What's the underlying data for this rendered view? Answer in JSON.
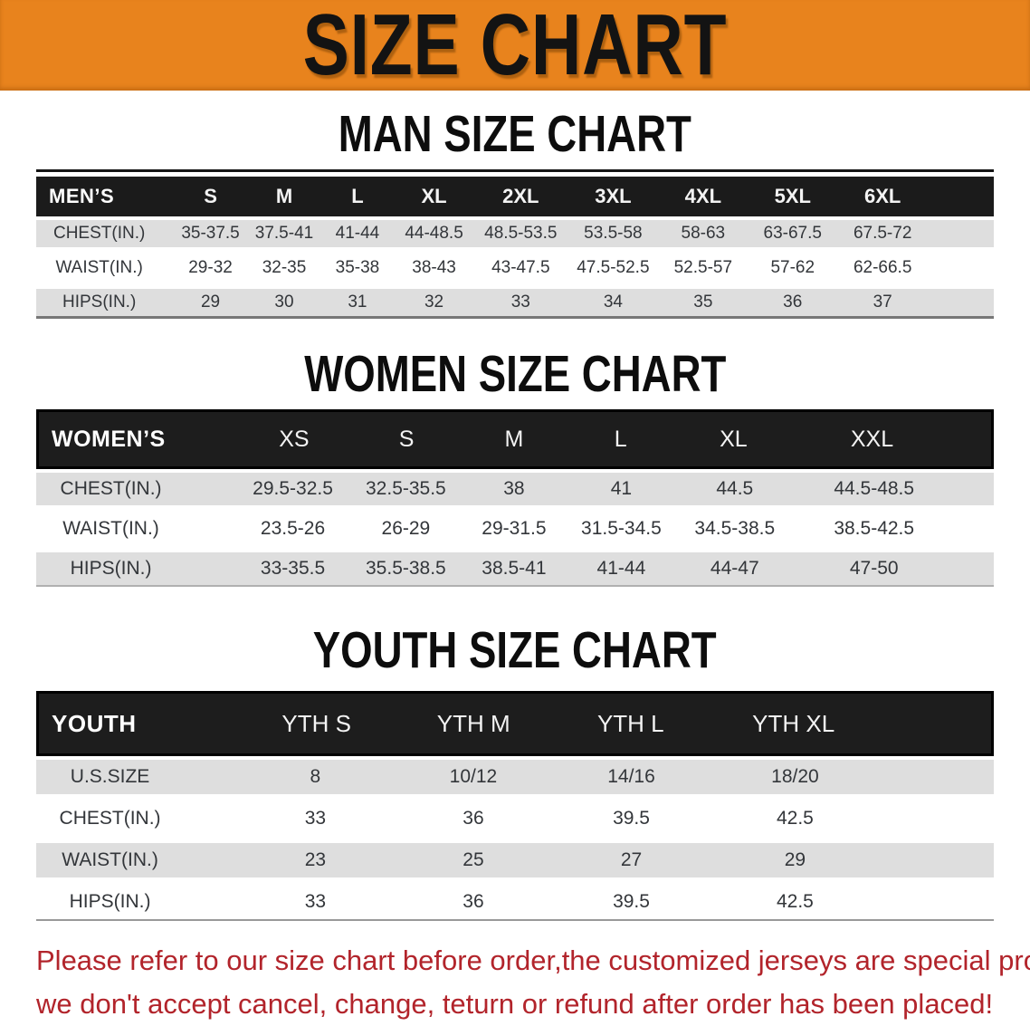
{
  "banner": {
    "title": "SIZE CHART",
    "bg": "#E8831D"
  },
  "sections": [
    {
      "heading": "MAN SIZE CHART",
      "table": {
        "label": "MEN’S",
        "columns": [
          "S",
          "M",
          "L",
          "XL",
          "2XL",
          "3XL",
          "4XL",
          "5XL",
          "6XL"
        ],
        "rows": [
          {
            "label": "CHEST(IN.)",
            "values": [
              "35-37.5",
              "37.5-41",
              "41-44",
              "44-48.5",
              "48.5-53.5",
              "53.5-58",
              "58-63",
              "63-67.5",
              "67.5-72"
            ]
          },
          {
            "label": "WAIST(IN.)",
            "values": [
              "29-32",
              "32-35",
              "35-38",
              "38-43",
              "43-47.5",
              "47.5-52.5",
              "52.5-57",
              "57-62",
              "62-66.5"
            ]
          },
          {
            "label": "HIPS(IN.)",
            "values": [
              "29",
              "30",
              "31",
              "32",
              "33",
              "34",
              "35",
              "36",
              "37"
            ]
          }
        ]
      }
    },
    {
      "heading": "WOMEN SIZE CHART",
      "table": {
        "label": "WOMEN’S",
        "columns": [
          "XS",
          "S",
          "M",
          "L",
          "XL",
          "XXL"
        ],
        "rows": [
          {
            "label": "CHEST(IN.)",
            "values": [
              "29.5-32.5",
              "32.5-35.5",
              "38",
              "41",
              "44.5",
              "44.5-48.5"
            ]
          },
          {
            "label": "WAIST(IN.)",
            "values": [
              "23.5-26",
              "26-29",
              "29-31.5",
              "31.5-34.5",
              "34.5-38.5",
              "38.5-42.5"
            ]
          },
          {
            "label": "HIPS(IN.)",
            "values": [
              "33-35.5",
              "35.5-38.5",
              "38.5-41",
              "41-44",
              "44-47",
              "47-50"
            ]
          }
        ]
      }
    },
    {
      "heading": "YOUTH SIZE CHART",
      "table": {
        "label": "YOUTH",
        "columns": [
          "YTH S",
          "YTH M",
          "YTH L",
          "YTH XL"
        ],
        "rows": [
          {
            "label": "U.S.SIZE",
            "values": [
              "8",
              "10/12",
              "14/16",
              "18/20"
            ]
          },
          {
            "label": "CHEST(IN.)",
            "values": [
              "33",
              "36",
              "39.5",
              "42.5"
            ]
          },
          {
            "label": "WAIST(IN.)",
            "values": [
              "23",
              "25",
              "27",
              "29"
            ]
          },
          {
            "label": "HIPS(IN.)",
            "values": [
              "33",
              "36",
              "39.5",
              "42.5"
            ]
          }
        ]
      }
    }
  ],
  "disclaimer": {
    "line1": "Please refer to our size chart before order,the customized jerseys are special products,",
    "line2": "we don't accept cancel, change, teturn or refund after order has been placed!",
    "color": "#B2242B"
  }
}
